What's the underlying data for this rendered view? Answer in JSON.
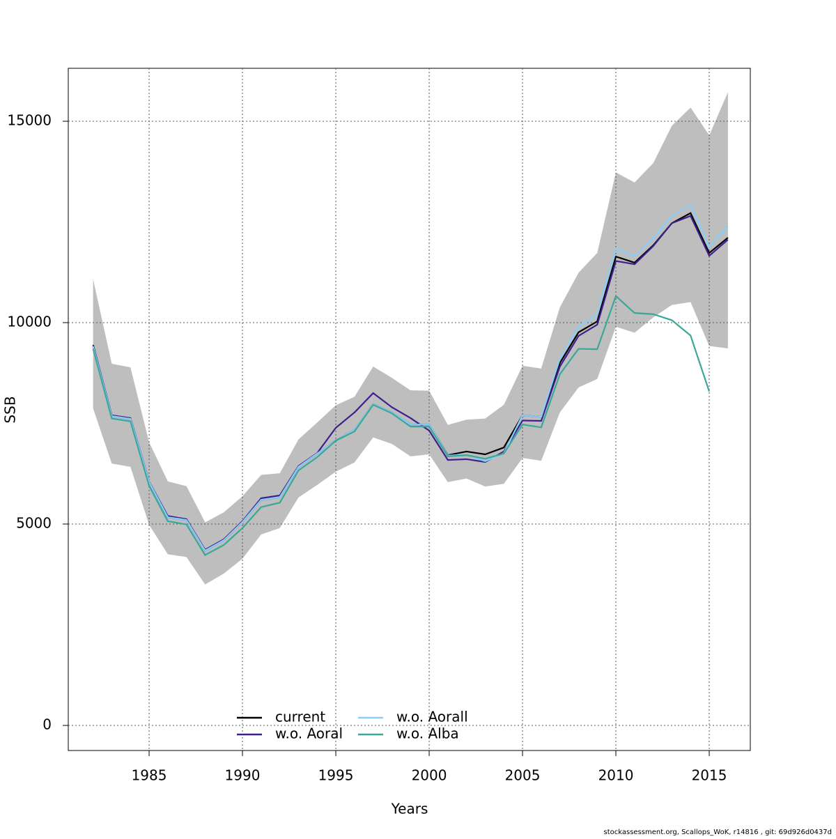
{
  "chart_data": {
    "type": "line",
    "x_label": "Years",
    "y_label": "SSB",
    "footnote": "stockassessment.org, Scallops_WoK, r14816 , git: 69d926d0437d",
    "x": [
      1982,
      1983,
      1984,
      1985,
      1986,
      1987,
      1988,
      1989,
      1990,
      1991,
      1992,
      1993,
      1994,
      1995,
      1996,
      1997,
      1998,
      1999,
      2000,
      2001,
      2002,
      2003,
      2004,
      2005,
      2006,
      2007,
      2008,
      2009,
      2010,
      2011,
      2012,
      2013,
      2014,
      2015,
      2016
    ],
    "xlim": [
      1980.67,
      2017.2
    ],
    "xticks": [
      1985,
      1990,
      1995,
      2000,
      2005,
      2010,
      2015
    ],
    "ylim": [
      -623,
      16315
    ],
    "yticks": [
      0,
      5000,
      10000,
      15000
    ],
    "grid": true,
    "legend": "bottom",
    "band": {
      "color": "#bebebe",
      "upper": [
        11080,
        8980,
        8890,
        7030,
        6060,
        5940,
        5040,
        5290,
        5690,
        6220,
        6260,
        7100,
        7520,
        7950,
        8160,
        8910,
        8630,
        8320,
        8310,
        7460,
        7590,
        7620,
        7960,
        8930,
        8860,
        10380,
        11240,
        11730,
        13730,
        13480,
        13960,
        14890,
        15340,
        14650,
        15720
      ],
      "lower": [
        7870,
        6500,
        6420,
        4980,
        4250,
        4180,
        3500,
        3770,
        4140,
        4740,
        4900,
        5660,
        5970,
        6300,
        6530,
        7150,
        6990,
        6680,
        6730,
        6040,
        6130,
        5930,
        6000,
        6640,
        6570,
        7770,
        8390,
        8600,
        9900,
        9750,
        10130,
        10440,
        10510,
        9420,
        9360
      ]
    },
    "series": [
      {
        "name": "current",
        "color": "#000000",
        "values": [
          9410,
          7680,
          7610,
          6040,
          5170,
          5100,
          4340,
          4600,
          5050,
          5600,
          5670,
          6420,
          6750,
          7070,
          7340,
          7980,
          7770,
          7470,
          7470,
          6710,
          6800,
          6730,
          6900,
          7700,
          7660,
          9000,
          9760,
          10030,
          11640,
          11490,
          11920,
          12470,
          12720,
          11730,
          12110
        ]
      },
      {
        "name": "w.o. Aoral",
        "color": "#3f1f8c",
        "values": [
          9450,
          7700,
          7630,
          6050,
          5200,
          5120,
          4360,
          4620,
          5070,
          5640,
          5710,
          6440,
          6760,
          7390,
          7770,
          8250,
          7900,
          7630,
          7320,
          6590,
          6610,
          6540,
          6800,
          7570,
          7560,
          8910,
          9670,
          9950,
          11530,
          11450,
          11900,
          12470,
          12650,
          11660,
          12060
        ]
      },
      {
        "name": "w.o. Aorall",
        "color": "#87cefa",
        "values": [
          9410,
          7680,
          7610,
          6040,
          5170,
          5100,
          4340,
          4600,
          5050,
          5600,
          5670,
          6420,
          6750,
          7070,
          7340,
          7980,
          7770,
          7470,
          7470,
          6700,
          6720,
          6560,
          6760,
          7700,
          7660,
          9100,
          9900,
          10200,
          11850,
          11650,
          12090,
          12650,
          12920,
          11890,
          12400
        ]
      },
      {
        "name": "w.o. Alba",
        "color": "#3aa896",
        "values": [
          9350,
          7620,
          7550,
          5950,
          5070,
          4990,
          4230,
          4480,
          4900,
          5420,
          5530,
          6330,
          6660,
          7070,
          7300,
          7960,
          7750,
          7420,
          7420,
          6680,
          6710,
          6620,
          6750,
          7470,
          7400,
          8720,
          9350,
          9340,
          10660,
          10240,
          10210,
          10060,
          9680,
          8290,
          null
        ]
      }
    ]
  }
}
